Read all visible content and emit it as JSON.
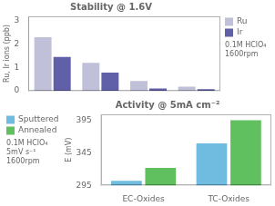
{
  "chart_data": [
    {
      "type": "bar",
      "title": "Stability @ 1.6V",
      "ylabel": "Ru, Ir ions (ppb)",
      "annotation": "0.1M HClO₄\n1600rpm",
      "categories": [
        null,
        null,
        null,
        null
      ],
      "series": [
        {
          "name": "Ru",
          "color": "#c0c0d8",
          "values": [
            2.3,
            1.2,
            0.42,
            0.18
          ]
        },
        {
          "name": "Ir",
          "color": "#6060a8",
          "values": [
            1.45,
            0.78,
            0.1,
            0.07
          ]
        }
      ],
      "ylim": [
        0,
        3.2
      ],
      "yticks": [
        0,
        1,
        2,
        3
      ],
      "grid": false,
      "legend": "upper right",
      "tick_labels": "y"
    },
    {
      "type": "bar",
      "title": "Activity @ 5mA cm⁻²",
      "ylabel": "E (mV)",
      "annotation": "0.1M HClO₄\n5mV s⁻¹\n1600rpm",
      "categories": [
        "EC-Oxides",
        "TC-Oxides"
      ],
      "series": [
        {
          "name": "Sputtered",
          "color": "#70bce0",
          "values": [
            302,
            360
          ]
        },
        {
          "name": "Annealed",
          "color": "#60c060",
          "values": [
            322,
            396
          ]
        }
      ],
      "ylim": [
        295,
        405
      ],
      "yticks": [
        295,
        345,
        395
      ],
      "grid": false,
      "legend": "upper left"
    }
  ]
}
